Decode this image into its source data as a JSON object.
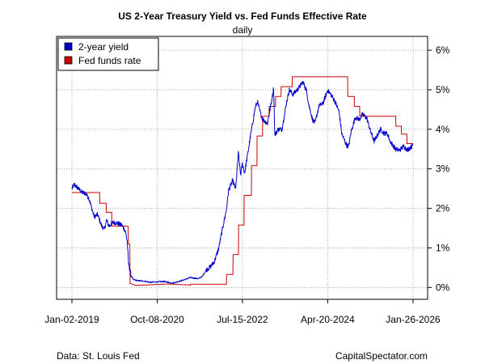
{
  "chart_data": {
    "type": "line",
    "title": "US 2-Year Treasury Yield vs. Fed Funds Effective Rate",
    "subtitle": "daily",
    "xlabel": "",
    "ylabel": "",
    "x_range": [
      "2019-01-02",
      "2026-01-26"
    ],
    "x_ticks": [
      "Jan-02-2019",
      "Oct-08-2020",
      "Jul-15-2022",
      "Apr-20-2024",
      "Jan-26-2026"
    ],
    "y_ticks": [
      "0%",
      "1%",
      "2%",
      "3%",
      "4%",
      "5%",
      "6%"
    ],
    "ylim": [
      -0.3,
      6.35
    ],
    "y_axis_side": "right",
    "grid": true,
    "legend_position": "top-left",
    "series": [
      {
        "name": "2-year yield",
        "color": "#0000cc",
        "style": "daily line",
        "points": [
          [
            "2019-01-02",
            2.5
          ],
          [
            "2019-01-20",
            2.6
          ],
          [
            "2019-02-20",
            2.5
          ],
          [
            "2019-03-20",
            2.4
          ],
          [
            "2019-04-15",
            2.38
          ],
          [
            "2019-05-10",
            2.26
          ],
          [
            "2019-06-01",
            2.0
          ],
          [
            "2019-06-20",
            1.78
          ],
          [
            "2019-07-15",
            1.85
          ],
          [
            "2019-08-15",
            1.55
          ],
          [
            "2019-09-05",
            1.47
          ],
          [
            "2019-09-20",
            1.7
          ],
          [
            "2019-10-10",
            1.55
          ],
          [
            "2019-11-10",
            1.65
          ],
          [
            "2019-12-15",
            1.62
          ],
          [
            "2020-01-15",
            1.57
          ],
          [
            "2020-02-10",
            1.43
          ],
          [
            "2020-02-25",
            1.15
          ],
          [
            "2020-03-05",
            0.62
          ],
          [
            "2020-03-15",
            0.45
          ],
          [
            "2020-03-25",
            0.3
          ],
          [
            "2020-04-10",
            0.2
          ],
          [
            "2020-05-15",
            0.17
          ],
          [
            "2020-07-01",
            0.16
          ],
          [
            "2020-08-15",
            0.13
          ],
          [
            "2020-10-08",
            0.14
          ],
          [
            "2020-12-01",
            0.15
          ],
          [
            "2021-02-01",
            0.11
          ],
          [
            "2021-04-01",
            0.16
          ],
          [
            "2021-06-15",
            0.25
          ],
          [
            "2021-08-15",
            0.22
          ],
          [
            "2021-09-15",
            0.28
          ],
          [
            "2021-10-15",
            0.45
          ],
          [
            "2021-11-15",
            0.52
          ],
          [
            "2021-12-15",
            0.66
          ],
          [
            "2022-01-15",
            0.97
          ],
          [
            "2022-02-15",
            1.5
          ],
          [
            "2022-03-15",
            1.95
          ],
          [
            "2022-04-01",
            2.45
          ],
          [
            "2022-05-01",
            2.7
          ],
          [
            "2022-05-25",
            2.5
          ],
          [
            "2022-06-14",
            3.4
          ],
          [
            "2022-07-01",
            2.85
          ],
          [
            "2022-07-15",
            3.13
          ],
          [
            "2022-08-01",
            2.9
          ],
          [
            "2022-08-25",
            3.4
          ],
          [
            "2022-09-15",
            3.85
          ],
          [
            "2022-10-20",
            4.55
          ],
          [
            "2022-11-05",
            4.7
          ],
          [
            "2022-11-25",
            4.45
          ],
          [
            "2022-12-15",
            4.25
          ],
          [
            "2023-01-20",
            4.15
          ],
          [
            "2023-02-20",
            4.7
          ],
          [
            "2023-03-08",
            5.05
          ],
          [
            "2023-03-17",
            3.85
          ],
          [
            "2023-04-10",
            4.0
          ],
          [
            "2023-05-10",
            4.0
          ],
          [
            "2023-06-15",
            4.7
          ],
          [
            "2023-07-05",
            5.0
          ],
          [
            "2023-08-01",
            4.88
          ],
          [
            "2023-09-15",
            5.05
          ],
          [
            "2023-10-15",
            5.2
          ],
          [
            "2023-11-10",
            5.0
          ],
          [
            "2023-12-01",
            4.6
          ],
          [
            "2023-12-27",
            4.25
          ],
          [
            "2024-01-15",
            4.15
          ],
          [
            "2024-02-15",
            4.6
          ],
          [
            "2024-03-15",
            4.65
          ],
          [
            "2024-04-20",
            4.99
          ],
          [
            "2024-05-20",
            4.85
          ],
          [
            "2024-06-15",
            4.7
          ],
          [
            "2024-07-15",
            4.45
          ],
          [
            "2024-08-05",
            3.88
          ],
          [
            "2024-09-10",
            3.6
          ],
          [
            "2024-09-25",
            3.56
          ],
          [
            "2024-10-15",
            3.95
          ],
          [
            "2024-11-15",
            4.3
          ],
          [
            "2024-12-15",
            4.25
          ],
          [
            "2025-01-10",
            4.38
          ],
          [
            "2025-02-10",
            4.28
          ],
          [
            "2025-03-10",
            3.95
          ],
          [
            "2025-04-07",
            3.7
          ],
          [
            "2025-05-01",
            3.85
          ],
          [
            "2025-05-25",
            4.0
          ],
          [
            "2025-06-20",
            3.9
          ],
          [
            "2025-07-15",
            3.9
          ],
          [
            "2025-08-05",
            3.7
          ],
          [
            "2025-09-15",
            3.5
          ],
          [
            "2025-10-15",
            3.47
          ],
          [
            "2025-11-15",
            3.57
          ],
          [
            "2025-12-15",
            3.48
          ],
          [
            "2026-01-26",
            3.6
          ]
        ]
      },
      {
        "name": "Fed funds rate",
        "color": "#cc0000",
        "style": "step line",
        "points": [
          [
            "2019-01-02",
            2.4
          ],
          [
            "2019-07-31",
            2.4
          ],
          [
            "2019-08-01",
            2.13
          ],
          [
            "2019-09-18",
            2.13
          ],
          [
            "2019-09-19",
            1.9
          ],
          [
            "2019-10-30",
            1.9
          ],
          [
            "2019-10-31",
            1.55
          ],
          [
            "2020-03-02",
            1.55
          ],
          [
            "2020-03-04",
            1.1
          ],
          [
            "2020-03-15",
            1.1
          ],
          [
            "2020-03-17",
            0.1
          ],
          [
            "2020-05-01",
            0.05
          ],
          [
            "2020-12-31",
            0.09
          ],
          [
            "2021-06-16",
            0.06
          ],
          [
            "2021-06-17",
            0.08
          ],
          [
            "2022-03-16",
            0.08
          ],
          [
            "2022-03-17",
            0.33
          ],
          [
            "2022-05-04",
            0.33
          ],
          [
            "2022-05-05",
            0.83
          ],
          [
            "2022-06-15",
            0.83
          ],
          [
            "2022-06-16",
            1.58
          ],
          [
            "2022-07-27",
            1.58
          ],
          [
            "2022-07-28",
            2.33
          ],
          [
            "2022-09-21",
            2.33
          ],
          [
            "2022-09-22",
            3.08
          ],
          [
            "2022-11-02",
            3.08
          ],
          [
            "2022-11-03",
            3.83
          ],
          [
            "2022-12-14",
            3.83
          ],
          [
            "2022-12-15",
            4.33
          ],
          [
            "2023-02-01",
            4.33
          ],
          [
            "2023-02-02",
            4.58
          ],
          [
            "2023-03-22",
            4.58
          ],
          [
            "2023-03-23",
            4.83
          ],
          [
            "2023-05-03",
            4.83
          ],
          [
            "2023-05-04",
            5.08
          ],
          [
            "2023-07-26",
            5.08
          ],
          [
            "2023-07-27",
            5.33
          ],
          [
            "2024-09-18",
            5.33
          ],
          [
            "2024-09-19",
            4.83
          ],
          [
            "2024-11-07",
            4.83
          ],
          [
            "2024-11-08",
            4.58
          ],
          [
            "2024-12-18",
            4.58
          ],
          [
            "2024-12-19",
            4.33
          ],
          [
            "2025-09-17",
            4.33
          ],
          [
            "2025-09-18",
            4.08
          ],
          [
            "2025-10-29",
            4.08
          ],
          [
            "2025-10-30",
            3.88
          ],
          [
            "2025-12-10",
            3.88
          ],
          [
            "2025-12-11",
            3.64
          ],
          [
            "2026-01-26",
            3.64
          ]
        ]
      }
    ]
  },
  "footer": {
    "source": "Data: St. Louis Fed",
    "credit": "CapitalSpectator.com"
  }
}
